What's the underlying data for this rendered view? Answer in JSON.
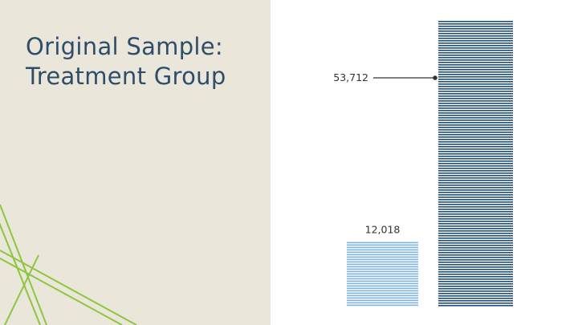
{
  "slide": {
    "title_lines": [
      "Original Sample:",
      "Treatment Group"
    ]
  },
  "colors": {
    "left_panel": "#ebe6da",
    "title": "#2d4d6a",
    "deco_lines": "#8cc63f",
    "short_bar_stripe": "#7fb3e0",
    "tall_bar_stripe": "#1f4e79",
    "leader_line": "#333333"
  },
  "chart_data": {
    "type": "bar",
    "style": "striped",
    "series": [
      {
        "values": [
          12018,
          53712
        ]
      }
    ],
    "labels": [
      "12,018",
      "53,712"
    ],
    "legend": "none",
    "grid": false
  }
}
